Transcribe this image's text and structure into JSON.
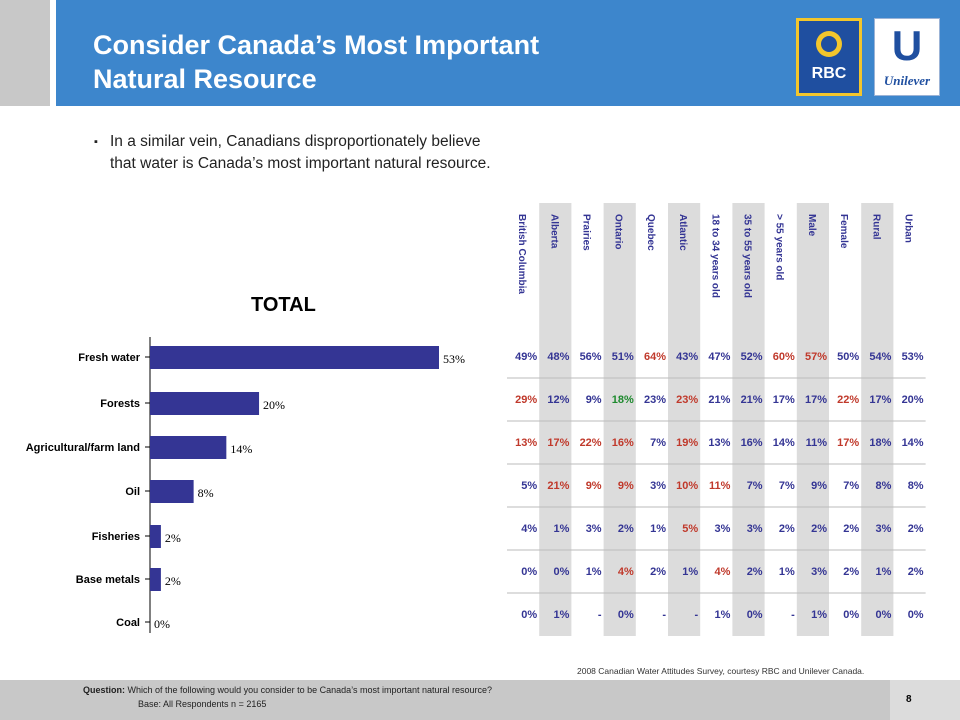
{
  "header": {
    "title_line1": "Consider Canada’s Most Important",
    "title_line2": "Natural Resource"
  },
  "logos": {
    "rbc": "RBC",
    "unilever_mark": "U",
    "unilever": "Unilever"
  },
  "bullet": {
    "line1": "In a similar vein, Canadians disproportionately believe",
    "line2": "that water is Canada’s most important natural resource."
  },
  "chart_data": {
    "type": "bar",
    "orientation": "horizontal",
    "title": "TOTAL",
    "categories": [
      "Fresh water",
      "Forests",
      "Agricultural/farm land",
      "Oil",
      "Fisheries",
      "Base metals",
      "Coal"
    ],
    "values": [
      53,
      20,
      14,
      8,
      2,
      2,
      0
    ],
    "value_labels": [
      "53%",
      "20%",
      "14%",
      "8%",
      "2%",
      "2%",
      "0%"
    ],
    "bar_color": "#343594",
    "table": {
      "columns": [
        "British Columbia",
        "Alberta",
        "Prairies",
        "Ontario",
        "Quebec",
        "Atlantic",
        "18 to 34 years old",
        "35 to 55 years old",
        "> 55 years old",
        "Male",
        "Female",
        "Rural",
        "Urban"
      ],
      "rows": [
        [
          "49%",
          "48%",
          "56%",
          "51%",
          "64%",
          "43%",
          "47%",
          "52%",
          "60%",
          "57%",
          "50%",
          "54%",
          "53%"
        ],
        [
          "29%",
          "12%",
          "9%",
          "18%",
          "23%",
          "23%",
          "21%",
          "21%",
          "17%",
          "17%",
          "22%",
          "17%",
          "20%"
        ],
        [
          "13%",
          "17%",
          "22%",
          "16%",
          "7%",
          "19%",
          "13%",
          "16%",
          "14%",
          "11%",
          "17%",
          "18%",
          "14%"
        ],
        [
          "5%",
          "21%",
          "9%",
          "9%",
          "3%",
          "10%",
          "11%",
          "7%",
          "7%",
          "9%",
          "7%",
          "8%",
          "8%"
        ],
        [
          "4%",
          "1%",
          "3%",
          "2%",
          "1%",
          "5%",
          "3%",
          "3%",
          "2%",
          "2%",
          "2%",
          "3%",
          "2%"
        ],
        [
          "0%",
          "0%",
          "1%",
          "4%",
          "2%",
          "1%",
          "4%",
          "2%",
          "1%",
          "3%",
          "2%",
          "1%",
          "2%"
        ],
        [
          "0%",
          "1%",
          "-",
          "0%",
          "-",
          "-",
          "1%",
          "0%",
          "-",
          "1%",
          "0%",
          "0%",
          "0%"
        ]
      ],
      "cell_colors": [
        [
          "b",
          "b",
          "b",
          "b",
          "r",
          "b",
          "b",
          "b",
          "r",
          "r",
          "b",
          "b",
          "b"
        ],
        [
          "r",
          "b",
          "b",
          "g",
          "b",
          "r",
          "b",
          "b",
          "b",
          "b",
          "r",
          "b",
          "b"
        ],
        [
          "r",
          "r",
          "r",
          "r",
          "b",
          "r",
          "b",
          "b",
          "b",
          "b",
          "r",
          "b",
          "b"
        ],
        [
          "b",
          "r",
          "r",
          "r",
          "b",
          "r",
          "r",
          "b",
          "b",
          "b",
          "b",
          "b",
          "b"
        ],
        [
          "b",
          "b",
          "b",
          "b",
          "b",
          "r",
          "b",
          "b",
          "b",
          "b",
          "b",
          "b",
          "b"
        ],
        [
          "b",
          "b",
          "b",
          "r",
          "b",
          "b",
          "r",
          "b",
          "b",
          "b",
          "b",
          "b",
          "b"
        ],
        [
          "b",
          "b",
          "b",
          "b",
          "b",
          "b",
          "b",
          "b",
          "b",
          "b",
          "b",
          "b",
          "b"
        ]
      ],
      "palette": {
        "b": "#343594",
        "r": "#c0392b",
        "g": "#1e8a2e"
      },
      "shade_color": "#dcdcdc"
    }
  },
  "source": "2008 Canadian Water Attitudes Survey, courtesy RBC and Unilever Canada.",
  "footer": {
    "question_label": "Question:",
    "question": "Which of the following would you consider to be Canada’s most important natural resource?",
    "base": "Base: All Respondents n = 2165",
    "page": "8"
  }
}
